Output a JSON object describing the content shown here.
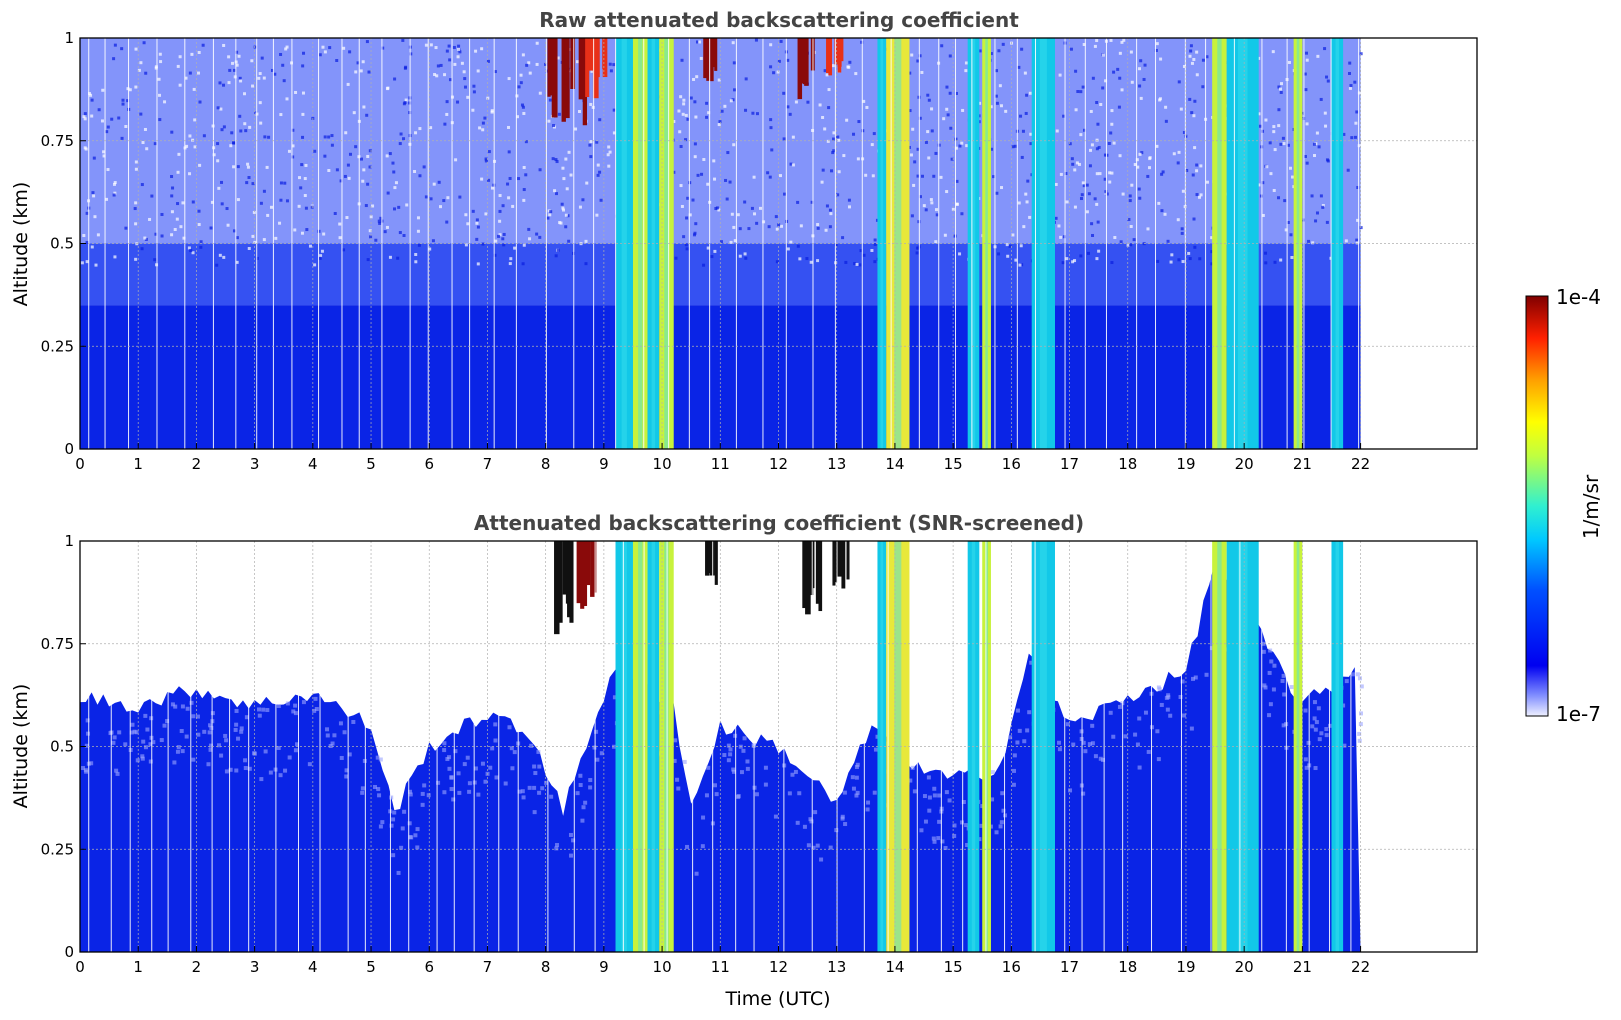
{
  "chart_data": [
    {
      "type": "heatmap",
      "title": "Raw attenuated backscattering coefficient",
      "xlabel": "",
      "ylabel": "Altitude (km)",
      "xlim": [
        0,
        24
      ],
      "ylim": [
        0,
        1
      ],
      "x_ticks": [
        "0",
        "1",
        "2",
        "3",
        "4",
        "5",
        "6",
        "7",
        "8",
        "9",
        "10",
        "11",
        "12",
        "13",
        "14",
        "15",
        "16",
        "17",
        "18",
        "19",
        "20",
        "21",
        "22"
      ],
      "y_ticks": [
        "0",
        "0.25",
        "0.5",
        "0.75",
        "1"
      ],
      "data_end_hour": 22,
      "grid": true,
      "background_level_profile": [
        {
          "altitude_km": 0.0,
          "level": "strong-blue"
        },
        {
          "altitude_km": 0.35,
          "level": "blue"
        },
        {
          "altitude_km": 0.5,
          "level": "sparse-blue"
        },
        {
          "altitude_km": 1.0,
          "level": "sparse-blue-noise"
        }
      ],
      "cloud_columns": [
        {
          "start": 9.2,
          "end": 9.5,
          "intensity": "cyan"
        },
        {
          "start": 9.5,
          "end": 9.75,
          "intensity": "yellow-green"
        },
        {
          "start": 9.75,
          "end": 9.95,
          "intensity": "cyan"
        },
        {
          "start": 9.95,
          "end": 10.2,
          "intensity": "yellow-green"
        },
        {
          "start": 13.7,
          "end": 13.85,
          "intensity": "cyan"
        },
        {
          "start": 13.85,
          "end": 14.25,
          "intensity": "yellow"
        },
        {
          "start": 15.25,
          "end": 15.45,
          "intensity": "cyan"
        },
        {
          "start": 15.5,
          "end": 15.65,
          "intensity": "yellow-green"
        },
        {
          "start": 16.35,
          "end": 16.75,
          "intensity": "cyan"
        },
        {
          "start": 19.45,
          "end": 19.7,
          "intensity": "yellow-green"
        },
        {
          "start": 19.7,
          "end": 20.25,
          "intensity": "cyan"
        },
        {
          "start": 20.85,
          "end": 21.0,
          "intensity": "yellow-green"
        },
        {
          "start": 21.5,
          "end": 21.7,
          "intensity": "cyan"
        }
      ],
      "strong_features": [
        {
          "x": 8.2,
          "altitude_top": 1.0,
          "altitude_bottom": 0.75,
          "intensity": "dark-red"
        },
        {
          "x": 8.5,
          "altitude_top": 1.0,
          "altitude_bottom": 0.78,
          "intensity": "dark-red"
        },
        {
          "x": 8.8,
          "altitude_top": 1.0,
          "altitude_bottom": 0.85,
          "intensity": "red"
        },
        {
          "x": 10.75,
          "altitude_top": 1.0,
          "altitude_bottom": 0.88,
          "intensity": "dark-red"
        },
        {
          "x": 12.5,
          "altitude_top": 1.0,
          "altitude_bottom": 0.85,
          "intensity": "dark-red"
        },
        {
          "x": 13.0,
          "altitude_top": 1.0,
          "altitude_bottom": 0.9,
          "intensity": "red"
        }
      ]
    },
    {
      "type": "heatmap",
      "title": "Attenuated backscattering coefficient (SNR-screened)",
      "xlabel": "Time (UTC)",
      "ylabel": "Altitude (km)",
      "xlim": [
        0,
        24
      ],
      "ylim": [
        0,
        1
      ],
      "x_ticks": [
        "0",
        "1",
        "2",
        "3",
        "4",
        "5",
        "6",
        "7",
        "8",
        "9",
        "10",
        "11",
        "12",
        "13",
        "14",
        "15",
        "16",
        "17",
        "18",
        "19",
        "20",
        "21",
        "22"
      ],
      "y_ticks": [
        "0",
        "0.25",
        "0.5",
        "0.75",
        "1"
      ],
      "data_end_hour": 22,
      "grid": true,
      "boundary_layer_top_km": [
        {
          "x": 0,
          "y": 0.62
        },
        {
          "x": 1,
          "y": 0.6
        },
        {
          "x": 2,
          "y": 0.64
        },
        {
          "x": 3,
          "y": 0.6
        },
        {
          "x": 4,
          "y": 0.63
        },
        {
          "x": 5,
          "y": 0.55
        },
        {
          "x": 5.4,
          "y": 0.34
        },
        {
          "x": 6,
          "y": 0.5
        },
        {
          "x": 7,
          "y": 0.58
        },
        {
          "x": 7.8,
          "y": 0.52
        },
        {
          "x": 8.3,
          "y": 0.34
        },
        {
          "x": 8.8,
          "y": 0.55
        },
        {
          "x": 9.2,
          "y": 0.7
        },
        {
          "x": 10.2,
          "y": 0.6
        },
        {
          "x": 10.5,
          "y": 0.35
        },
        {
          "x": 11,
          "y": 0.55
        },
        {
          "x": 12,
          "y": 0.5
        },
        {
          "x": 13,
          "y": 0.36
        },
        {
          "x": 13.6,
          "y": 0.55
        },
        {
          "x": 14.3,
          "y": 0.45
        },
        {
          "x": 15,
          "y": 0.42
        },
        {
          "x": 15.8,
          "y": 0.45
        },
        {
          "x": 16.3,
          "y": 0.72
        },
        {
          "x": 17,
          "y": 0.55
        },
        {
          "x": 18,
          "y": 0.62
        },
        {
          "x": 19,
          "y": 0.68
        },
        {
          "x": 19.5,
          "y": 0.95
        },
        {
          "x": 20.5,
          "y": 0.72
        },
        {
          "x": 21,
          "y": 0.6
        },
        {
          "x": 22,
          "y": 0.7
        }
      ],
      "cloud_columns": [
        {
          "start": 9.2,
          "end": 9.5,
          "intensity": "cyan"
        },
        {
          "start": 9.5,
          "end": 9.75,
          "intensity": "yellow-green"
        },
        {
          "start": 9.75,
          "end": 9.95,
          "intensity": "cyan"
        },
        {
          "start": 9.95,
          "end": 10.2,
          "intensity": "yellow-green"
        },
        {
          "start": 13.7,
          "end": 13.85,
          "intensity": "cyan"
        },
        {
          "start": 13.85,
          "end": 14.25,
          "intensity": "yellow"
        },
        {
          "start": 15.25,
          "end": 15.45,
          "intensity": "cyan"
        },
        {
          "start": 15.5,
          "end": 15.65,
          "intensity": "yellow-green"
        },
        {
          "start": 16.35,
          "end": 16.75,
          "intensity": "cyan"
        },
        {
          "start": 19.45,
          "end": 19.7,
          "intensity": "yellow-green"
        },
        {
          "start": 19.7,
          "end": 20.25,
          "intensity": "cyan"
        },
        {
          "start": 20.85,
          "end": 21.0,
          "intensity": "yellow-green"
        },
        {
          "start": 21.5,
          "end": 21.7,
          "intensity": "cyan"
        }
      ],
      "strong_features": [
        {
          "x": 8.3,
          "altitude_top": 1.0,
          "altitude_bottom": 0.76,
          "intensity": "black"
        },
        {
          "x": 8.6,
          "altitude_top": 1.0,
          "altitude_bottom": 0.82,
          "intensity": "dark-red"
        },
        {
          "x": 10.75,
          "altitude_top": 1.0,
          "altitude_bottom": 0.88,
          "intensity": "black"
        },
        {
          "x": 12.5,
          "altitude_top": 1.0,
          "altitude_bottom": 0.82,
          "intensity": "black"
        },
        {
          "x": 13.0,
          "altitude_top": 1.0,
          "altitude_bottom": 0.88,
          "intensity": "black"
        }
      ]
    }
  ],
  "colorbar": {
    "label": "1/m/sr",
    "max_label": "1e-4",
    "min_label": "1e-7",
    "scale": "log",
    "colormap": "jet"
  },
  "colors": {
    "strong-blue": "#0a24e6",
    "blue": "#1232f0",
    "sparse-blue": "#1e3cf5",
    "sparse-blue-noise": "#2a46f5",
    "cyan": "#12c8e8",
    "light-cyan": "#3ee0ee",
    "yellow-green": "#c8f23c",
    "yellow": "#e8e83a",
    "red": "#e83018",
    "dark-red": "#8a0a0a",
    "black": "#101010"
  }
}
